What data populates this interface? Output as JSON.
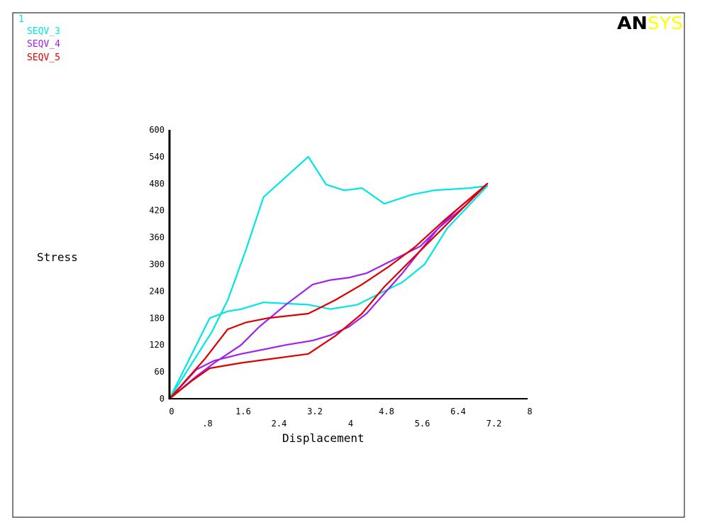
{
  "window": {
    "number": "1"
  },
  "logo": {
    "part1": "AN",
    "part2": "SYS",
    "color1": "#000000",
    "color2": "#ffff00"
  },
  "chart_data": {
    "type": "line",
    "xlabel": "Displacement",
    "ylabel": "Stress",
    "xlim": [
      0,
      8
    ],
    "ylim": [
      0,
      600
    ],
    "grid": false,
    "legend_position": "top-left",
    "x_ticks_upper": [
      "0",
      "1.6",
      "3.2",
      "4.8",
      "6.4",
      "8"
    ],
    "x_tick_values_upper": [
      0,
      1.6,
      3.2,
      4.8,
      6.4,
      8
    ],
    "x_ticks_lower": [
      ".8",
      "2.4",
      "4",
      "5.6",
      "7.2"
    ],
    "x_tick_values_lower": [
      0.8,
      2.4,
      4,
      5.6,
      7.2
    ],
    "y_ticks": [
      "0",
      "60",
      "120",
      "180",
      "240",
      "300",
      "360",
      "420",
      "480",
      "540",
      "600"
    ],
    "y_tick_values": [
      0,
      60,
      120,
      180,
      240,
      300,
      360,
      420,
      480,
      540,
      600
    ],
    "series": [
      {
        "name": "SEQV_3",
        "color": "#00e5e5",
        "x": [
          0,
          0.9,
          1.3,
          1.6,
          2.1,
          3.1,
          3.6,
          4.2,
          4.6,
          5.2,
          5.7,
          6.2,
          7.1,
          6.7,
          5.9,
          5.4,
          4.8,
          4.3,
          3.9,
          3.5,
          3.1,
          2.1,
          1.7,
          1.3,
          0.95,
          0
        ],
        "y": [
          0,
          180,
          195,
          200,
          215,
          210,
          200,
          210,
          230,
          260,
          300,
          380,
          475,
          470,
          465,
          455,
          435,
          470,
          465,
          478,
          540,
          450,
          330,
          220,
          150,
          0
        ]
      },
      {
        "name": "SEQV_4",
        "color": "#a020f0",
        "x": [
          0,
          0.6,
          1.0,
          1.6,
          2.0,
          2.6,
          3.2,
          3.6,
          4.0,
          4.4,
          4.8,
          5.2,
          5.6,
          6.0,
          6.4,
          7.1,
          6.6,
          6.0,
          5.6,
          5.2,
          4.8,
          4.4,
          4.0,
          3.6,
          3.2,
          2.6,
          2.0,
          1.6,
          1.0,
          0.6,
          0
        ],
        "y": [
          0,
          50,
          80,
          120,
          160,
          210,
          255,
          265,
          270,
          280,
          300,
          320,
          340,
          380,
          420,
          480,
          430,
          380,
          330,
          280,
          235,
          190,
          160,
          142,
          130,
          120,
          108,
          100,
          85,
          65,
          0
        ]
      },
      {
        "name": "SEQV_5",
        "color": "#dd0000",
        "x": [
          0,
          0.8,
          1.3,
          1.7,
          2.2,
          3.1,
          3.7,
          4.3,
          4.9,
          5.5,
          6.1,
          7.1,
          6.6,
          6.0,
          5.4,
          4.8,
          4.3,
          3.7,
          3.1,
          2.2,
          1.6,
          0.9,
          0.5,
          0
        ],
        "y": [
          0,
          90,
          155,
          170,
          180,
          190,
          220,
          255,
          295,
          340,
          395,
          480,
          430,
          370,
          310,
          250,
          190,
          140,
          100,
          88,
          80,
          68,
          40,
          0
        ]
      }
    ]
  }
}
